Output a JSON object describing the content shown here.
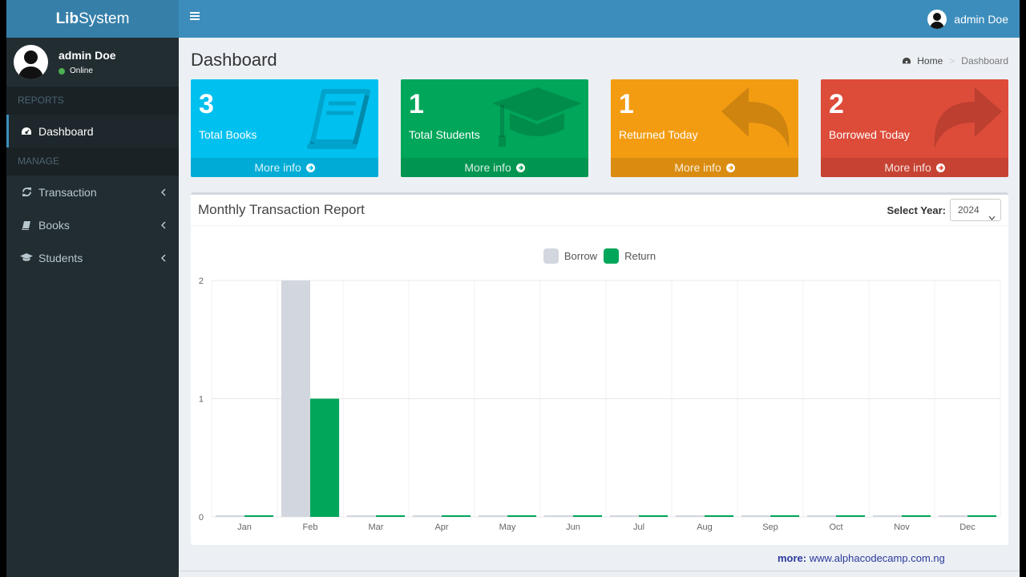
{
  "app": {
    "logo_bold": "Lib",
    "logo_rest": "System"
  },
  "user": {
    "name": "admin Doe",
    "status": "Online"
  },
  "sidebar": {
    "reports_header": "REPORTS",
    "manage_header": "MANAGE",
    "items": [
      {
        "label": "Dashboard",
        "icon": "dashboard-icon"
      },
      {
        "label": "Transaction",
        "icon": "refresh-icon"
      },
      {
        "label": "Books",
        "icon": "book-icon"
      },
      {
        "label": "Students",
        "icon": "graduation-cap-icon"
      }
    ]
  },
  "header": {
    "user_name": "admin Doe"
  },
  "page": {
    "title": "Dashboard",
    "breadcrumb_home": "Home",
    "breadcrumb_current": "Dashboard"
  },
  "boxes": [
    {
      "value": "3",
      "label": "Total Books",
      "footer": "More info",
      "color": "#00c0ef",
      "icon": "book-icon"
    },
    {
      "value": "1",
      "label": "Total Students",
      "footer": "More info",
      "color": "#00a65a",
      "icon": "graduation-cap-icon"
    },
    {
      "value": "1",
      "label": "Returned Today",
      "footer": "More info",
      "color": "#f39c12",
      "icon": "reply-icon"
    },
    {
      "value": "2",
      "label": "Borrowed Today",
      "footer": "More info",
      "color": "#dd4b39",
      "icon": "share-icon"
    }
  ],
  "report": {
    "title": "Monthly Transaction Report",
    "year_label": "Select Year:",
    "year_value": "2024"
  },
  "chart_data": {
    "type": "bar",
    "categories": [
      "Jan",
      "Feb",
      "Mar",
      "Apr",
      "May",
      "Jun",
      "Jul",
      "Aug",
      "Sep",
      "Oct",
      "Nov",
      "Dec"
    ],
    "series": [
      {
        "name": "Borrow",
        "values": [
          0,
          2,
          0,
          0,
          0,
          0,
          0,
          0,
          0,
          0,
          0,
          0
        ],
        "color": "#d2d6de"
      },
      {
        "name": "Return",
        "values": [
          0,
          1,
          0,
          0,
          0,
          0,
          0,
          0,
          0,
          0,
          0,
          0
        ],
        "color": "#00a65a"
      }
    ],
    "ylim": [
      0,
      2
    ],
    "yticks": [
      "0",
      "1",
      "2"
    ],
    "legend": "top-center",
    "grid": true
  },
  "watermark": {
    "label": "more:",
    "url": "www.alphacodecamp.com.ng"
  }
}
